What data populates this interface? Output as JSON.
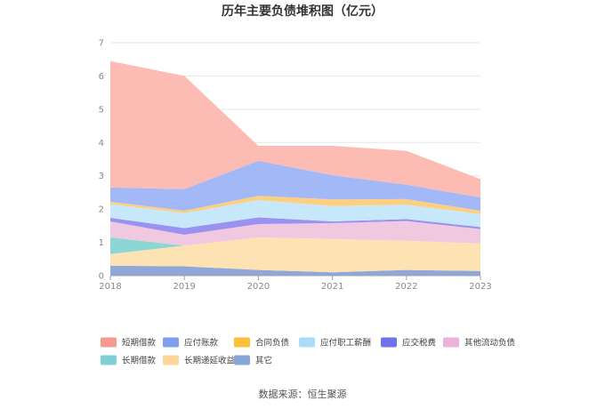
{
  "chart_data": {
    "type": "area",
    "stacked": true,
    "title": "历年主要负债堆积图（亿元）",
    "x": [
      "2018",
      "2019",
      "2020",
      "2021",
      "2022",
      "2023"
    ],
    "ylim": [
      0,
      7
    ],
    "yticks": [
      "0",
      "1",
      "2",
      "3",
      "4",
      "5",
      "6",
      "7"
    ],
    "grid": true,
    "legend_position": "bottom",
    "series": [
      {
        "name": "其它",
        "color": "#8fa8d8",
        "values": [
          0.3,
          0.28,
          0.17,
          0.1,
          0.17,
          0.14
        ]
      },
      {
        "name": "长期递延收益",
        "color": "#fde2b4",
        "values": [
          0.35,
          0.62,
          0.98,
          1.0,
          0.88,
          0.83
        ]
      },
      {
        "name": "长期借款",
        "color": "#8cd6d6",
        "values": [
          0.5,
          0.0,
          0.0,
          0.0,
          0.0,
          0.0
        ]
      },
      {
        "name": "其他流动负债",
        "color": "#f0c8e0",
        "values": [
          0.48,
          0.33,
          0.4,
          0.48,
          0.59,
          0.43
        ]
      },
      {
        "name": "应交税费",
        "color": "#9b91f0",
        "values": [
          0.11,
          0.2,
          0.2,
          0.05,
          0.06,
          0.06
        ]
      },
      {
        "name": "应付职工薪酬",
        "color": "#c6e8fa",
        "values": [
          0.41,
          0.45,
          0.52,
          0.46,
          0.43,
          0.39
        ]
      },
      {
        "name": "合同负债",
        "color": "#fcd080",
        "values": [
          0.07,
          0.07,
          0.13,
          0.2,
          0.17,
          0.1
        ]
      },
      {
        "name": "应付账款",
        "color": "#a3b8f7",
        "values": [
          0.43,
          0.65,
          1.05,
          0.73,
          0.43,
          0.4
        ]
      },
      {
        "name": "短期借款",
        "color": "#fcbcb4",
        "values": [
          3.8,
          3.4,
          0.45,
          0.88,
          1.02,
          0.55
        ]
      }
    ],
    "legend_order": [
      "短期借款",
      "应付账款",
      "合同负债",
      "应付职工薪酬",
      "应交税费",
      "其他流动负债",
      "长期借款",
      "长期递延收益",
      "其它"
    ],
    "legend_colors": {
      "短期借款": "#f59a90",
      "应付账款": "#7f9ef2",
      "合同负债": "#fbbf3c",
      "应付职工薪酬": "#a8dcf8",
      "应交税费": "#6f72ea",
      "其他流动负债": "#ebb2dc",
      "长期借款": "#7fd0d6",
      "长期递延收益": "#fcd79a",
      "其它": "#86a6d8"
    }
  },
  "footer": {
    "source": "数据来源：恒生聚源"
  }
}
